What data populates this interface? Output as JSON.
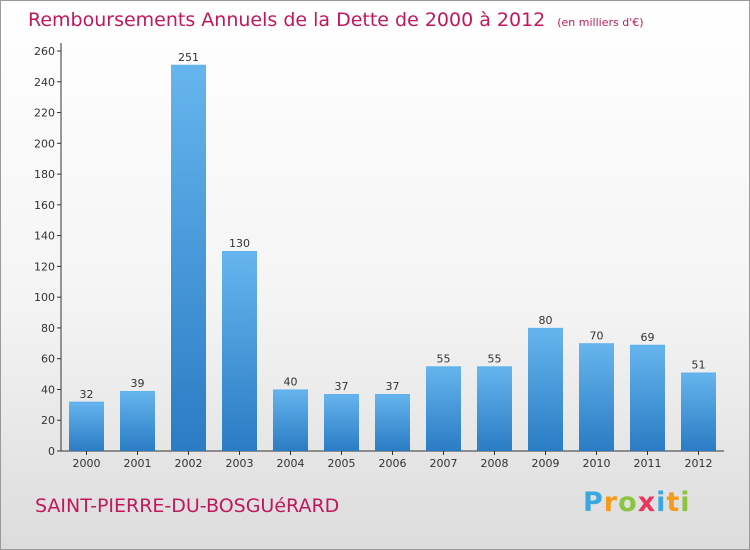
{
  "chart_data": {
    "type": "bar",
    "title": "Remboursements Annuels de la Dette de 2000 à 2012",
    "subtitle": "(en milliers d'€)",
    "xlabel": "",
    "ylabel": "",
    "categories": [
      "2000",
      "2001",
      "2002",
      "2003",
      "2004",
      "2005",
      "2006",
      "2007",
      "2008",
      "2009",
      "2010",
      "2011",
      "2012"
    ],
    "values": [
      32,
      39,
      251,
      130,
      40,
      37,
      37,
      55,
      55,
      80,
      70,
      69,
      51
    ],
    "ylim": [
      0,
      260
    ],
    "yticks": [
      0,
      20,
      40,
      60,
      80,
      100,
      120,
      140,
      160,
      180,
      200,
      220,
      240,
      260
    ],
    "grid": false,
    "legend": "none",
    "colors": {
      "bar": "#3c8fd6",
      "bar_light": "#62b2ee",
      "title": "#c2185b"
    }
  },
  "commune": "SAINT-PIERRE-DU-BOSGUéRARD",
  "logo": {
    "letters": [
      "P",
      "r",
      "o",
      "x",
      "i",
      "t",
      "i"
    ],
    "colors": [
      "#3aa8e0",
      "#f59b1b",
      "#8bc53f",
      "#e8365d",
      "#3aa8e0",
      "#f59b1b",
      "#8bc53f"
    ]
  }
}
